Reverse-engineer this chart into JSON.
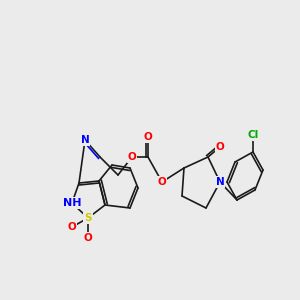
{
  "bg_color": "#ebebeb",
  "bond_color": "#1a1a1a",
  "atom_colors": {
    "O": "#ff0000",
    "N": "#0000ff",
    "S": "#cccc00",
    "Cl": "#00aa00",
    "H": "#555555"
  },
  "font_size": 7.5,
  "line_width": 1.2
}
